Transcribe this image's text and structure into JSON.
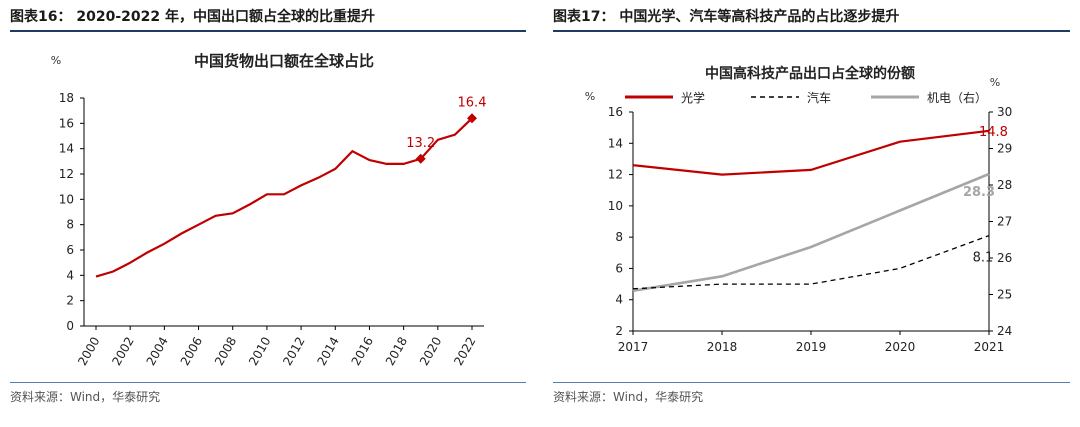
{
  "left": {
    "figure_title": "图表16： 2020-2022 年，中国出口额占全球的比重提升",
    "source": "资料来源：Wind，华泰研究",
    "chart_data": {
      "type": "line",
      "title": "中国货物出口额在全球占比",
      "ylabel": "%",
      "ylim": [
        0,
        18
      ],
      "yticks": [
        0,
        2,
        4,
        6,
        8,
        10,
        12,
        14,
        16,
        18
      ],
      "xticks": [
        "2000",
        "2002",
        "2004",
        "2006",
        "2008",
        "2010",
        "2012",
        "2014",
        "2016",
        "2018",
        "2020",
        "2022"
      ],
      "x": [
        2000,
        2001,
        2002,
        2003,
        2004,
        2005,
        2006,
        2007,
        2008,
        2009,
        2010,
        2011,
        2012,
        2013,
        2014,
        2015,
        2016,
        2017,
        2018,
        2019,
        2020,
        2021,
        2022
      ],
      "values": [
        3.9,
        4.3,
        5.0,
        5.8,
        6.5,
        7.3,
        8.0,
        8.7,
        8.9,
        9.6,
        10.4,
        10.4,
        11.1,
        11.7,
        12.4,
        13.8,
        13.1,
        12.8,
        12.8,
        13.2,
        14.7,
        15.1,
        16.4
      ],
      "color": "#c00000",
      "annotations": [
        {
          "x": 2019,
          "y": 13.2,
          "label": "13.2"
        },
        {
          "x": 2022,
          "y": 16.4,
          "label": "16.4"
        }
      ],
      "grid": false
    }
  },
  "right": {
    "figure_title": "图表17： 中国光学、汽车等高科技产品的占比逐步提升",
    "source": "资料来源：Wind，华泰研究",
    "chart_data": {
      "type": "line",
      "title": "中国高科技产品出口占全球的份额",
      "ylabel_left": "%",
      "ylabel_right": "%",
      "ylim_left": [
        2,
        16
      ],
      "yticks_left": [
        2,
        4,
        6,
        8,
        10,
        12,
        14,
        16
      ],
      "ylim_right": [
        24,
        30
      ],
      "yticks_right": [
        24,
        25,
        26,
        27,
        28,
        29,
        30
      ],
      "categories": [
        "2017",
        "2018",
        "2019",
        "2020",
        "2021"
      ],
      "legend_position": "top",
      "series": [
        {
          "name": "光学",
          "axis": "left",
          "values": [
            12.6,
            12.0,
            12.3,
            14.1,
            14.8
          ],
          "color": "#c00000",
          "style": "solid",
          "end_label": "14.8"
        },
        {
          "name": "汽车",
          "axis": "left",
          "values": [
            4.7,
            5.0,
            5.0,
            6.0,
            8.1
          ],
          "color": "#000000",
          "style": "dashed",
          "end_label": "8.1"
        },
        {
          "name": "机电（右）",
          "axis": "right",
          "values": [
            25.1,
            25.5,
            26.3,
            27.3,
            28.3
          ],
          "color": "#a6a6a6",
          "style": "solid",
          "end_label": "28.3"
        }
      ],
      "grid": false
    }
  }
}
